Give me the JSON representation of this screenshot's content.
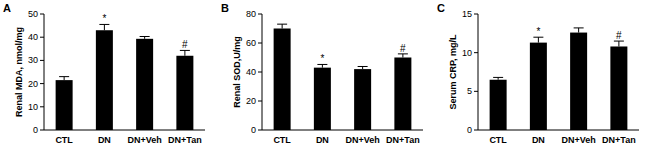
{
  "chart_data": [
    {
      "type": "bar",
      "panel": "A",
      "ylabel": "Renal MDA, nmol/mg",
      "categories": [
        "CTL",
        "DN",
        "DN+Veh",
        "DN+Tan"
      ],
      "values": [
        21.5,
        43,
        39.3,
        32
      ],
      "errors": [
        1.5,
        2.5,
        1,
        2.3
      ],
      "significance": [
        null,
        "*",
        null,
        "#"
      ],
      "color": "#000000",
      "ylim": [
        0,
        50
      ],
      "yticks": [
        0,
        10,
        20,
        30,
        40,
        50
      ]
    },
    {
      "type": "bar",
      "panel": "B",
      "ylabel": "Renal SOD,U/mg",
      "categories": [
        "CTL",
        "DN",
        "DN+Veh",
        "DN+Tan"
      ],
      "values": [
        70,
        43,
        42,
        50
      ],
      "errors": [
        3,
        2.2,
        1.8,
        2.5
      ],
      "significance": [
        null,
        "*",
        null,
        "#"
      ],
      "color": "#000000",
      "ylim": [
        0,
        80
      ],
      "yticks": [
        0,
        20,
        40,
        60,
        80
      ]
    },
    {
      "type": "bar",
      "panel": "C",
      "ylabel": "Serum CRP, mg/L",
      "categories": [
        "CTL",
        "DN",
        "DN+Veh",
        "DN+Tan"
      ],
      "values": [
        6.5,
        11.3,
        12.6,
        10.8
      ],
      "errors": [
        0.3,
        0.7,
        0.6,
        0.7
      ],
      "significance": [
        null,
        "*",
        null,
        "#"
      ],
      "color": "#000000",
      "ylim": [
        0,
        15
      ],
      "yticks": [
        0,
        5,
        10,
        15
      ]
    }
  ]
}
